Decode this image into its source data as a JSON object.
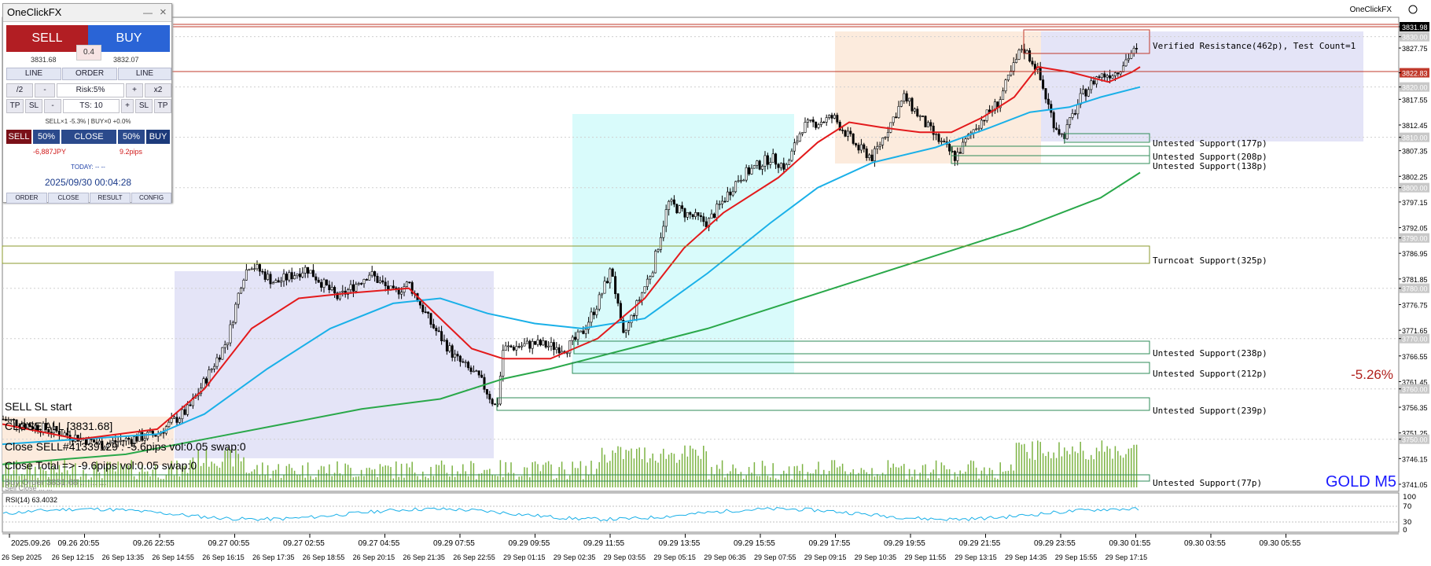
{
  "window": {
    "brand": "OneClickFX"
  },
  "symbol_label": "GOLD M5",
  "percent_change": "-5.26%",
  "colors": {
    "ma_fast": "#e31a1c",
    "ma_mid": "#1ab0e8",
    "ma_slow": "#2aa84a",
    "resistance": "#c0392b",
    "support": "#2e8b57",
    "zone_blue": "#e4e4f7",
    "zone_cyan": "#d9fbfb",
    "zone_orange": "#fcebdd"
  },
  "price_axis": {
    "labels": [
      "3831.98",
      "3830.00",
      "3827.75",
      "3822.83",
      "3820.00",
      "3817.55",
      "3812.45",
      "3810.00",
      "3807.35",
      "3802.25",
      "3800.00",
      "3797.15",
      "3792.05",
      "3790.00",
      "3786.95",
      "3781.85",
      "3780.00",
      "3776.75",
      "3771.65",
      "3770.00",
      "3766.55",
      "3761.45",
      "3760.00",
      "3756.35",
      "3751.25",
      "3750.00",
      "3746.15",
      "3741.05"
    ],
    "highlighted": [
      {
        "label": "3831.98",
        "color": "#000000"
      },
      {
        "label": "3822.83",
        "color": "#c0392b"
      }
    ]
  },
  "time_axis_upper": [
    "2025.09.26",
    "09.26 20:55",
    "09.26 22:55",
    "09.27 00:55",
    "09.27 02:55",
    "09.27 04:55",
    "09.29 07:55",
    "09.29 09:55",
    "09.29 11:55",
    "09.29 13:55",
    "09.29 15:55",
    "09.29 17:55",
    "09.29 19:55",
    "09.29 21:55",
    "09.29 23:55",
    "09.30 01:55",
    "09.30 03:55",
    "09.30 05:55"
  ],
  "time_axis_lower": [
    "26 Sep 2025",
    "26 Sep 12:15",
    "26 Sep 13:35",
    "26 Sep 14:55",
    "26 Sep 16:15",
    "26 Sep 17:35",
    "26 Sep 18:55",
    "26 Sep 20:15",
    "26 Sep 21:35",
    "26 Sep 22:55",
    "29 Sep 01:15",
    "29 Sep 02:35",
    "29 Sep 03:55",
    "29 Sep 05:15",
    "29 Sep 06:35",
    "29 Sep 07:55",
    "29 Sep 09:15",
    "29 Sep 10:35",
    "29 Sep 11:55",
    "29 Sep 13:15",
    "29 Sep 14:35",
    "29 Sep 15:55",
    "29 Sep 17:15"
  ],
  "zones": [
    {
      "label": "Verified Resistance(462p), Test Count=1"
    },
    {
      "label": "Untested Support(177p)"
    },
    {
      "label": "Untested Support(208p)"
    },
    {
      "label": "Untested Support(138p)"
    },
    {
      "label": "Turncoat Support(325p)"
    },
    {
      "label": "Untested Support(238p)"
    },
    {
      "label": "Untested Support(212p)"
    },
    {
      "label": "Untested Support(239p)"
    },
    {
      "label": "Untested Support(77p)"
    }
  ],
  "log_lines": [
    "SELL SL start",
    "CLOSE ALL [3831.68]",
    "Close SELL#41339129 : -5.6pips vol:0.05 swap:0",
    "Close Total => -9.6pips vol:0.05 swap:0",
    "Buy Order 3831.68 ... ... ...",
    "Sell Close ... ..."
  ],
  "rsi": {
    "label": "RSI(14) 63.4032",
    "levels": [
      "100",
      "70",
      "30",
      "0"
    ]
  },
  "panel": {
    "title": "OneClickFX",
    "min_icon": "—",
    "close_icon": "×",
    "sell_label": "SELL",
    "buy_label": "BUY",
    "spread": "0.4",
    "sell_price": "3831.68",
    "buy_price": "3832.07",
    "line_left": "LINE",
    "order": "ORDER",
    "line_right": "LINE",
    "half": "/2",
    "minus": "-",
    "risk": "Risk:5%",
    "plus": "+",
    "double": "x2",
    "tp_l": "TP",
    "sl_l": "SL",
    "minus2": "-",
    "ts": "TS: 10",
    "plus2": "+",
    "sl_r": "SL",
    "tp_r": "TP",
    "positions": "SELL×1 -5.3% | BUY×0 +0.0%",
    "sell_btn": "SELL",
    "pct_left": "50%",
    "close_btn": "CLOSE",
    "pct_right": "50%",
    "buy_btn": "BUY",
    "pl_jpy": "-6,887JPY",
    "pl_pips": "9.2pips",
    "today": "TODAY: -- --",
    "datetime": "2025/09/30  00:04:28",
    "foot_order": "ORDER",
    "foot_close": "CLOSE",
    "foot_result": "RESULT",
    "foot_config": "CONFIG"
  }
}
